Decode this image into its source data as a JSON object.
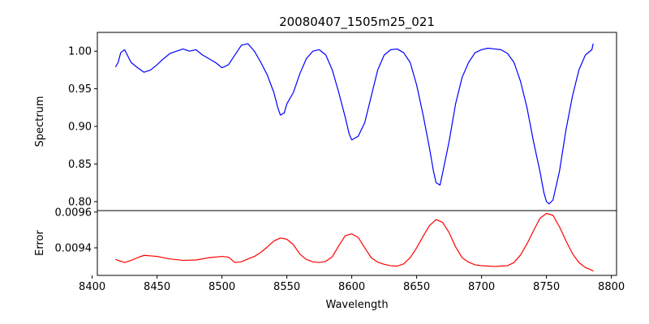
{
  "chart_data": [
    {
      "type": "line",
      "title": "20080407_1505m25_021",
      "ylabel": "Spectrum",
      "xlabel": "",
      "xlim": [
        8404,
        8804
      ],
      "ylim": [
        0.788,
        1.025
      ],
      "yticks": [
        0.8,
        0.85,
        0.9,
        0.95,
        1.0
      ],
      "ytick_labels": [
        "0.80",
        "0.85",
        "0.90",
        "0.95",
        "1.00"
      ],
      "color": "#0000ff",
      "series": [
        {
          "x": [
            8418,
            8420,
            8422,
            8425,
            8430,
            8435,
            8440,
            8445,
            8450,
            8455,
            8460,
            8465,
            8470,
            8475,
            8480,
            8485,
            8490,
            8495,
            8500,
            8505,
            8510,
            8515,
            8520,
            8525,
            8530,
            8535,
            8540,
            8543,
            8545,
            8548,
            8550,
            8555,
            8560,
            8565,
            8570,
            8575,
            8580,
            8585,
            8590,
            8595,
            8598,
            8600,
            8605,
            8610,
            8615,
            8620,
            8625,
            8630,
            8635,
            8640,
            8645,
            8650,
            8655,
            8660,
            8663,
            8665,
            8668,
            8670,
            8675,
            8680,
            8685,
            8690,
            8695,
            8700,
            8705,
            8710,
            8715,
            8720,
            8725,
            8730,
            8735,
            8740,
            8745,
            8748,
            8750,
            8752,
            8755,
            8760,
            8765,
            8770,
            8775,
            8780,
            8785,
            8786
          ],
          "y": [
            0.979,
            0.985,
            0.998,
            1.002,
            0.985,
            0.978,
            0.972,
            0.975,
            0.982,
            0.99,
            0.997,
            1.0,
            1.003,
            1.0,
            1.002,
            0.995,
            0.99,
            0.985,
            0.978,
            0.982,
            0.995,
            1.008,
            1.01,
            1.0,
            0.985,
            0.968,
            0.945,
            0.925,
            0.915,
            0.918,
            0.93,
            0.945,
            0.97,
            0.99,
            1.0,
            1.002,
            0.995,
            0.975,
            0.945,
            0.912,
            0.89,
            0.882,
            0.887,
            0.905,
            0.94,
            0.975,
            0.995,
            1.002,
            1.003,
            0.998,
            0.985,
            0.955,
            0.915,
            0.87,
            0.84,
            0.825,
            0.822,
            0.838,
            0.88,
            0.93,
            0.965,
            0.985,
            0.998,
            1.002,
            1.004,
            1.003,
            1.002,
            0.997,
            0.985,
            0.96,
            0.925,
            0.88,
            0.84,
            0.812,
            0.8,
            0.797,
            0.802,
            0.84,
            0.895,
            0.94,
            0.975,
            0.995,
            1.002,
            1.01
          ]
        }
      ]
    },
    {
      "type": "line",
      "title": "",
      "ylabel": "Error",
      "xlabel": "Wavelength",
      "xlim": [
        8404,
        8804
      ],
      "ylim": [
        0.009246,
        0.009608
      ],
      "yticks": [
        0.0094,
        0.0096
      ],
      "ytick_labels": [
        "0.0094",
        "0.0096"
      ],
      "xticks": [
        8400,
        8450,
        8500,
        8550,
        8600,
        8650,
        8700,
        8750,
        8800
      ],
      "xtick_labels": [
        "8400",
        "8450",
        "8500",
        "8550",
        "8600",
        "8650",
        "8700",
        "8750",
        "8800"
      ],
      "color": "#ff0000",
      "series": [
        {
          "x": [
            8418,
            8420,
            8425,
            8430,
            8435,
            8440,
            8450,
            8460,
            8470,
            8480,
            8490,
            8500,
            8505,
            8510,
            8515,
            8520,
            8525,
            8530,
            8535,
            8540,
            8545,
            8550,
            8555,
            8560,
            8565,
            8570,
            8575,
            8580,
            8585,
            8590,
            8595,
            8600,
            8605,
            8610,
            8615,
            8620,
            8625,
            8630,
            8635,
            8640,
            8645,
            8650,
            8655,
            8660,
            8665,
            8670,
            8675,
            8680,
            8685,
            8690,
            8695,
            8700,
            8705,
            8710,
            8715,
            8720,
            8725,
            8730,
            8735,
            8740,
            8745,
            8750,
            8755,
            8760,
            8765,
            8770,
            8775,
            8780,
            8785,
            8786
          ],
          "y": [
            0.009335,
            0.00933,
            0.009318,
            0.00933,
            0.009345,
            0.009358,
            0.009352,
            0.009338,
            0.00933,
            0.009332,
            0.009345,
            0.009352,
            0.009348,
            0.009318,
            0.009322,
            0.009338,
            0.009352,
            0.009375,
            0.009405,
            0.009438,
            0.009455,
            0.009448,
            0.009418,
            0.009365,
            0.009335,
            0.009322,
            0.009318,
            0.009325,
            0.00935,
            0.009412,
            0.009468,
            0.009478,
            0.009458,
            0.0094,
            0.009345,
            0.00932,
            0.009308,
            0.0093,
            0.009298,
            0.00931,
            0.009345,
            0.0094,
            0.009465,
            0.009525,
            0.009558,
            0.009542,
            0.009485,
            0.009405,
            0.009345,
            0.00932,
            0.009305,
            0.0093,
            0.009298,
            0.009296,
            0.009298,
            0.0093,
            0.009318,
            0.00936,
            0.009422,
            0.009495,
            0.009565,
            0.009592,
            0.009582,
            0.009518,
            0.00944,
            0.009368,
            0.009318,
            0.00929,
            0.009275,
            0.00927
          ]
        }
      ]
    }
  ]
}
